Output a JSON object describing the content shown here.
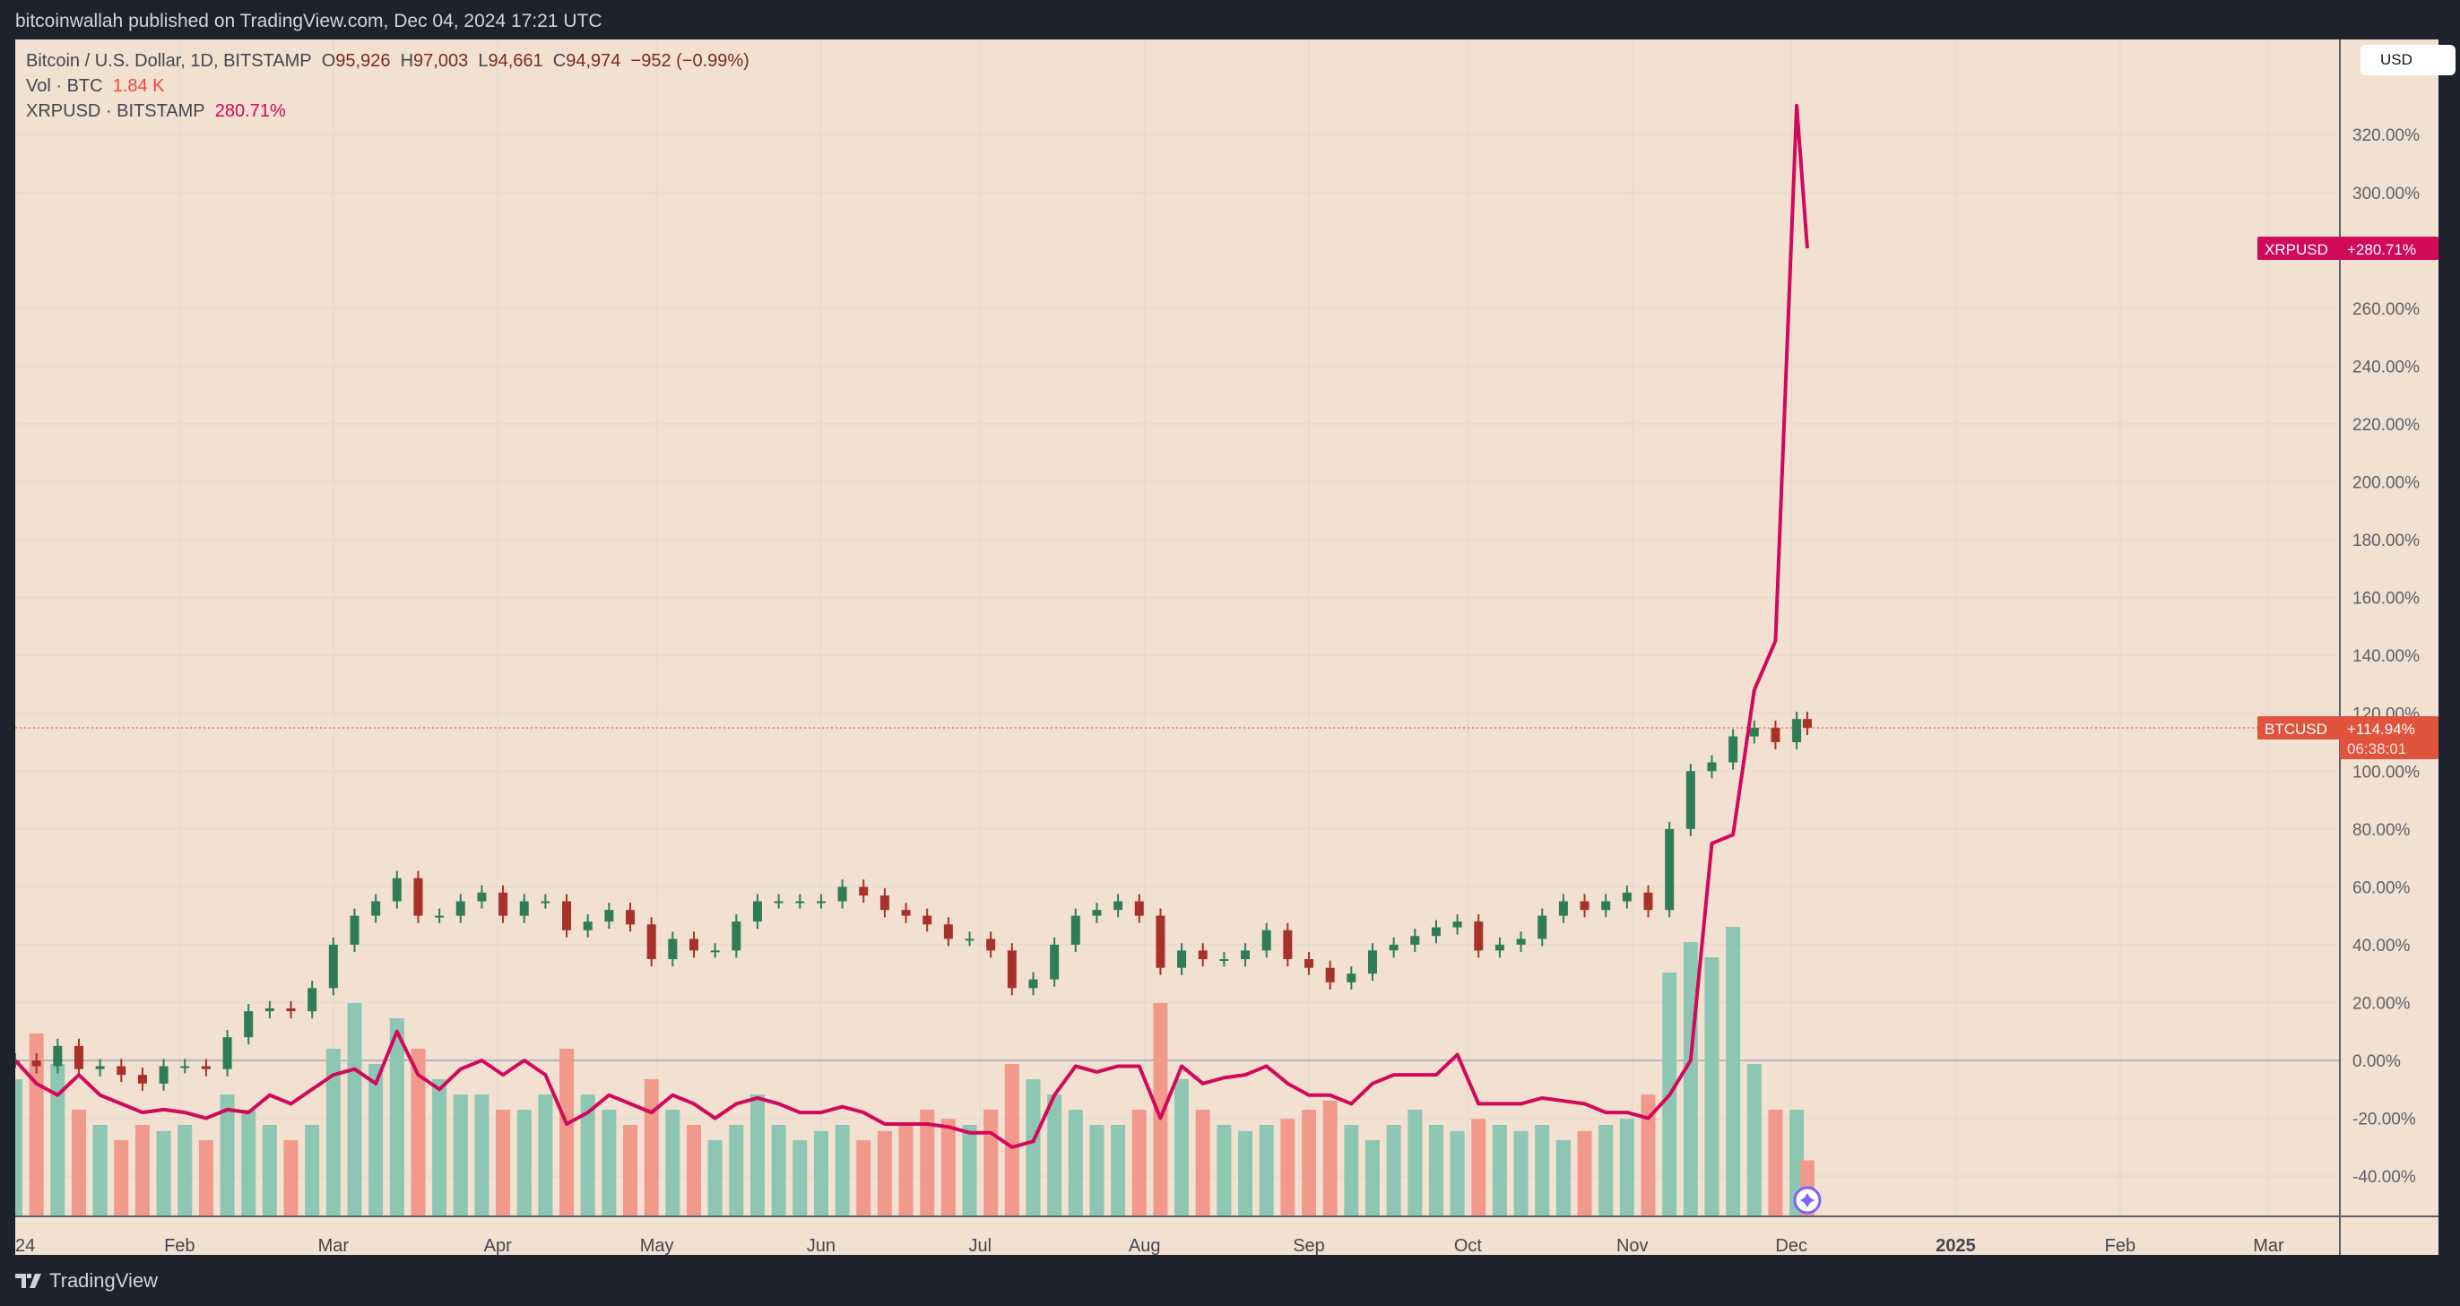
{
  "topbar": {
    "text": "bitcoinwallah published on TradingView.com, Dec 04, 2024 17:21 UTC"
  },
  "legend": {
    "symbol": "Bitcoin / U.S. Dollar, 1D, BITSTAMP",
    "o_label": "O",
    "o": "95,926",
    "h_label": "H",
    "h": "97,003",
    "l_label": "L",
    "l": "94,661",
    "c_label": "C",
    "c": "94,974",
    "change": "−952 (−0.99%)",
    "vol_label": "Vol · BTC",
    "vol": "1.84 K",
    "compare_label": "XRPUSD · BITSTAMP",
    "compare": "280.71%"
  },
  "currency_button": "USD",
  "footer": {
    "brand": "TradingView"
  },
  "colors": {
    "background": "#f2e0d0",
    "up": "#26a69a",
    "down": "#ef5350",
    "vol_up": "#8dc6b3",
    "vol_down": "#f19a8b",
    "xrp": "#d1095b",
    "btc_tag": "#e0533d",
    "grid": "#e9dccf"
  },
  "chart_data": {
    "type": "candlestick+line+bar",
    "y_scale": "percent",
    "ylim": [
      -55,
      340
    ],
    "yticks": [
      "320.00%",
      "300.00%",
      "260.00%",
      "240.00%",
      "220.00%",
      "200.00%",
      "180.00%",
      "160.00%",
      "140.00%",
      "120.00%",
      "100.00%",
      "80.00%",
      "60.00%",
      "40.00%",
      "20.00%",
      "0.00%",
      "-20.00%",
      "-40.00%"
    ],
    "ytick_values": [
      320,
      300,
      260,
      240,
      220,
      200,
      180,
      160,
      140,
      120,
      100,
      80,
      60,
      40,
      20,
      0,
      -20,
      -40
    ],
    "xticks": [
      {
        "label": "24",
        "date": "2024-01-01"
      },
      {
        "label": "Feb",
        "date": "2024-02-01"
      },
      {
        "label": "Mar",
        "date": "2024-03-01"
      },
      {
        "label": "Apr",
        "date": "2024-04-01"
      },
      {
        "label": "May",
        "date": "2024-05-01"
      },
      {
        "label": "Jun",
        "date": "2024-06-01"
      },
      {
        "label": "Jul",
        "date": "2024-07-01"
      },
      {
        "label": "Aug",
        "date": "2024-08-01"
      },
      {
        "label": "Sep",
        "date": "2024-09-01"
      },
      {
        "label": "Oct",
        "date": "2024-10-01"
      },
      {
        "label": "Nov",
        "date": "2024-11-01"
      },
      {
        "label": "Dec",
        "date": "2024-12-01"
      },
      {
        "label": "2025",
        "date": "2025-01-01"
      },
      {
        "label": "Feb",
        "date": "2025-02-01"
      },
      {
        "label": "Mar",
        "date": "2025-03-01"
      }
    ],
    "xlim": [
      "2024-01-01",
      "2025-03-20"
    ],
    "dates": [
      "2024-01-01",
      "2024-01-05",
      "2024-01-09",
      "2024-01-13",
      "2024-01-17",
      "2024-01-21",
      "2024-01-25",
      "2024-01-29",
      "2024-02-02",
      "2024-02-06",
      "2024-02-10",
      "2024-02-14",
      "2024-02-18",
      "2024-02-22",
      "2024-02-26",
      "2024-03-01",
      "2024-03-05",
      "2024-03-09",
      "2024-03-13",
      "2024-03-17",
      "2024-03-21",
      "2024-03-25",
      "2024-03-29",
      "2024-04-02",
      "2024-04-06",
      "2024-04-10",
      "2024-04-14",
      "2024-04-18",
      "2024-04-22",
      "2024-04-26",
      "2024-04-30",
      "2024-05-04",
      "2024-05-08",
      "2024-05-12",
      "2024-05-16",
      "2024-05-20",
      "2024-05-24",
      "2024-05-28",
      "2024-06-01",
      "2024-06-05",
      "2024-06-09",
      "2024-06-13",
      "2024-06-17",
      "2024-06-21",
      "2024-06-25",
      "2024-06-29",
      "2024-07-03",
      "2024-07-07",
      "2024-07-11",
      "2024-07-15",
      "2024-07-19",
      "2024-07-23",
      "2024-07-27",
      "2024-07-31",
      "2024-08-04",
      "2024-08-08",
      "2024-08-12",
      "2024-08-16",
      "2024-08-20",
      "2024-08-24",
      "2024-08-28",
      "2024-09-01",
      "2024-09-05",
      "2024-09-09",
      "2024-09-13",
      "2024-09-17",
      "2024-09-21",
      "2024-09-25",
      "2024-09-29",
      "2024-10-03",
      "2024-10-07",
      "2024-10-11",
      "2024-10-15",
      "2024-10-19",
      "2024-10-23",
      "2024-10-27",
      "2024-10-31",
      "2024-11-04",
      "2024-11-08",
      "2024-11-12",
      "2024-11-16",
      "2024-11-20",
      "2024-11-24",
      "2024-11-28",
      "2024-12-02",
      "2024-12-04"
    ],
    "series": [
      {
        "name": "BTCUSD",
        "type": "candlestick",
        "values": [
          0,
          -2,
          5,
          -3,
          -2,
          -5,
          -8,
          -2,
          -2,
          -3,
          8,
          17,
          18,
          17,
          25,
          40,
          50,
          55,
          63,
          50,
          50,
          55,
          58,
          50,
          55,
          55,
          45,
          48,
          52,
          47,
          35,
          42,
          38,
          38,
          48,
          55,
          55,
          55,
          55,
          60,
          57,
          52,
          50,
          47,
          42,
          42,
          38,
          25,
          28,
          40,
          50,
          52,
          55,
          50,
          32,
          38,
          35,
          35,
          38,
          45,
          35,
          32,
          27,
          30,
          38,
          40,
          43,
          46,
          48,
          38,
          40,
          42,
          50,
          55,
          52,
          55,
          58,
          52,
          80,
          100,
          103,
          112,
          115,
          110,
          118,
          114.94
        ]
      },
      {
        "name": "XRPUSD",
        "type": "line",
        "values": [
          0,
          -8,
          -12,
          -5,
          -12,
          -15,
          -18,
          -17,
          -18,
          -20,
          -17,
          -18,
          -12,
          -15,
          -10,
          -5,
          -3,
          -8,
          10,
          -5,
          -10,
          -3,
          0,
          -5,
          0,
          -5,
          -22,
          -18,
          -12,
          -15,
          -18,
          -12,
          -15,
          -20,
          -15,
          -13,
          -15,
          -18,
          -18,
          -16,
          -18,
          -22,
          -22,
          -22,
          -23,
          -25,
          -25,
          -30,
          -28,
          -12,
          -2,
          -4,
          -2,
          -2,
          -20,
          -2,
          -8,
          -6,
          -5,
          -2,
          -8,
          -12,
          -12,
          -15,
          -8,
          -5,
          -5,
          -5,
          2,
          -15,
          -15,
          -15,
          -13,
          -14,
          -15,
          -18,
          -18,
          -20,
          -12,
          0,
          75,
          78,
          128,
          145,
          330,
          280.71
        ]
      },
      {
        "name": "Vol · BTC",
        "type": "bar",
        "unit": "K",
        "values": [
          4.5,
          6,
          5,
          3.5,
          3,
          2.5,
          3,
          2.8,
          3,
          2.5,
          4,
          3.5,
          3,
          2.5,
          3,
          5.5,
          7,
          5,
          6.5,
          5.5,
          4.5,
          4,
          4,
          3.5,
          3.5,
          4,
          5.5,
          4,
          3.5,
          3,
          4.5,
          3.5,
          3,
          2.5,
          3,
          4,
          3,
          2.5,
          2.8,
          3,
          2.5,
          2.8,
          3,
          3.5,
          3.2,
          3,
          3.5,
          5,
          4.5,
          4,
          3.5,
          3,
          3,
          3.5,
          7,
          4.5,
          3.5,
          3,
          2.8,
          3,
          3.2,
          3.5,
          3.8,
          3,
          2.5,
          3,
          3.5,
          3,
          2.8,
          3.2,
          3,
          2.8,
          3,
          2.5,
          2.8,
          3,
          3.2,
          4,
          8,
          9,
          8.5,
          9.5,
          5,
          3.5,
          3.5,
          1.84
        ]
      }
    ],
    "last_labels": {
      "xrp_name": "XRPUSD",
      "xrp_value": "+280.71%",
      "btc_name": "BTCUSD",
      "btc_value": "+114.94%",
      "btc_countdown": "06:38:01"
    }
  }
}
